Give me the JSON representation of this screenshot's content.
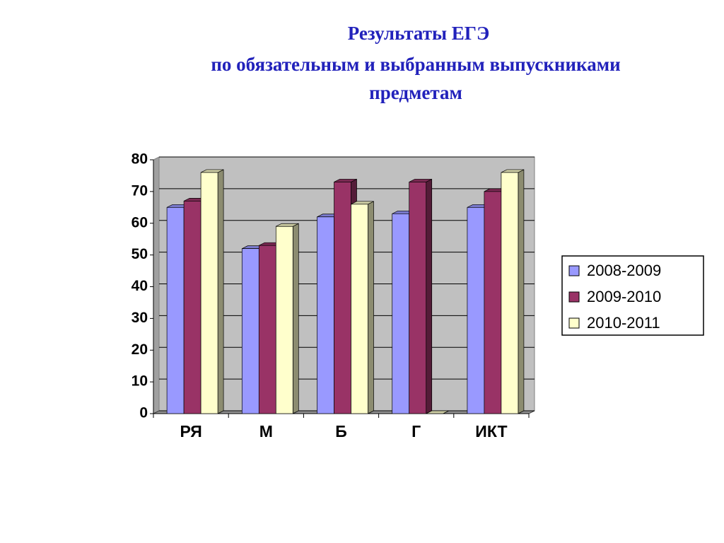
{
  "chart_data": {
    "type": "bar3d",
    "title": [
      "Результаты ЕГЭ",
      "по обязательным и выбранным выпускниками",
      "предметам"
    ],
    "categories": [
      "РЯ",
      "М",
      "Б",
      "Г",
      "ИКТ"
    ],
    "series": [
      {
        "name": "2008-2009",
        "color": "#9999ff",
        "values": [
          65,
          52,
          62,
          63,
          65
        ]
      },
      {
        "name": "2009-2010",
        "color": "#993366",
        "values": [
          67,
          53,
          73,
          73,
          70
        ]
      },
      {
        "name": "2010-2011",
        "color": "#ffffcc",
        "values": [
          76,
          59,
          66,
          0,
          76
        ]
      }
    ],
    "ylim": [
      0,
      80
    ],
    "yticks": [
      0,
      10,
      20,
      30,
      40,
      50,
      60,
      70,
      80
    ],
    "grid": true,
    "legend": "right"
  }
}
